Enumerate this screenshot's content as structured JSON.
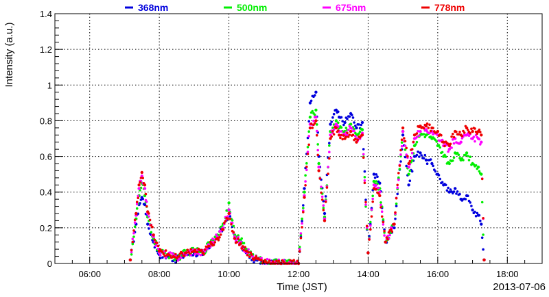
{
  "chart_data": {
    "type": "scatter",
    "title": "",
    "xlabel": "Time (JST)",
    "ylabel": "Intensity (a.u.)",
    "date_label": "2013-07-06",
    "xlim": [
      "05:00",
      "19:00"
    ],
    "ylim": [
      0,
      1.4
    ],
    "grid": true,
    "legend_position": "top",
    "x_tick_labels": [
      "06:00",
      "08:00",
      "10:00",
      "12:00",
      "14:00",
      "16:00",
      "18:00"
    ],
    "y_tick_labels": [
      "0",
      "0.2",
      "0.4",
      "0.6",
      "0.8",
      "1",
      "1.2",
      "1.4"
    ],
    "series": [
      {
        "name": "368nm",
        "color": "#0000dd",
        "x": [
          "07:10",
          "07:20",
          "07:25",
          "07:30",
          "07:35",
          "07:40",
          "07:50",
          "08:00",
          "08:15",
          "08:30",
          "08:45",
          "09:00",
          "09:15",
          "09:30",
          "09:40",
          "09:50",
          "10:00",
          "10:10",
          "10:20",
          "10:30",
          "10:45",
          "11:00",
          "11:30",
          "12:00",
          "12:10",
          "12:20",
          "12:30",
          "12:35",
          "12:45",
          "12:55",
          "13:05",
          "13:10",
          "13:20",
          "13:30",
          "13:40",
          "13:50",
          "14:00",
          "14:10",
          "14:20",
          "14:30",
          "14:45",
          "15:00",
          "15:10",
          "15:20",
          "15:30",
          "15:40",
          "15:50",
          "16:00",
          "16:10",
          "16:20",
          "16:30",
          "16:40",
          "16:50",
          "17:00",
          "17:10",
          "17:15",
          "17:20"
        ],
        "y": [
          0.02,
          0.22,
          0.33,
          0.37,
          0.33,
          0.22,
          0.12,
          0.05,
          0.04,
          0.02,
          0.05,
          0.06,
          0.05,
          0.11,
          0.14,
          0.2,
          0.3,
          0.14,
          0.11,
          0.06,
          0.02,
          0.01,
          0.0,
          0.0,
          0.42,
          0.9,
          0.96,
          0.6,
          0.28,
          0.78,
          0.86,
          0.82,
          0.79,
          0.84,
          0.76,
          0.79,
          0.06,
          0.5,
          0.45,
          0.12,
          0.2,
          0.72,
          0.44,
          0.6,
          0.62,
          0.58,
          0.56,
          0.5,
          0.44,
          0.4,
          0.42,
          0.36,
          0.38,
          0.3,
          0.27,
          0.22,
          0.02
        ]
      },
      {
        "name": "500nm",
        "color": "#00ee00",
        "x": [
          "07:10",
          "07:20",
          "07:25",
          "07:30",
          "07:35",
          "07:40",
          "07:50",
          "08:00",
          "08:15",
          "08:30",
          "08:45",
          "09:00",
          "09:15",
          "09:30",
          "09:40",
          "09:50",
          "10:00",
          "10:10",
          "10:20",
          "10:30",
          "10:45",
          "11:00",
          "11:30",
          "12:00",
          "12:10",
          "12:20",
          "12:30",
          "12:35",
          "12:45",
          "12:55",
          "13:05",
          "13:10",
          "13:20",
          "13:30",
          "13:40",
          "13:50",
          "14:00",
          "14:10",
          "14:20",
          "14:30",
          "14:45",
          "15:00",
          "15:10",
          "15:20",
          "15:30",
          "15:40",
          "15:50",
          "16:00",
          "16:10",
          "16:20",
          "16:30",
          "16:40",
          "16:50",
          "17:00",
          "17:10",
          "17:15",
          "17:20"
        ],
        "y": [
          0.02,
          0.25,
          0.38,
          0.45,
          0.38,
          0.26,
          0.14,
          0.06,
          0.05,
          0.03,
          0.06,
          0.07,
          0.06,
          0.13,
          0.16,
          0.22,
          0.34,
          0.16,
          0.13,
          0.08,
          0.03,
          0.01,
          0.0,
          0.0,
          0.4,
          0.82,
          0.86,
          0.56,
          0.26,
          0.74,
          0.8,
          0.76,
          0.74,
          0.78,
          0.72,
          0.75,
          0.06,
          0.46,
          0.42,
          0.12,
          0.22,
          0.74,
          0.5,
          0.66,
          0.72,
          0.72,
          0.7,
          0.66,
          0.6,
          0.56,
          0.62,
          0.58,
          0.62,
          0.56,
          0.54,
          0.5,
          0.02
        ]
      },
      {
        "name": "675nm",
        "color": "#ff00ff",
        "x": [
          "07:10",
          "07:20",
          "07:25",
          "07:30",
          "07:35",
          "07:40",
          "07:50",
          "08:00",
          "08:15",
          "08:30",
          "08:45",
          "09:00",
          "09:15",
          "09:30",
          "09:40",
          "09:50",
          "10:00",
          "10:10",
          "10:20",
          "10:30",
          "10:45",
          "11:00",
          "11:30",
          "12:00",
          "12:10",
          "12:20",
          "12:30",
          "12:35",
          "12:45",
          "12:55",
          "13:05",
          "13:10",
          "13:20",
          "13:30",
          "13:40",
          "13:50",
          "14:00",
          "14:10",
          "14:20",
          "14:30",
          "14:45",
          "15:00",
          "15:10",
          "15:20",
          "15:30",
          "15:40",
          "15:50",
          "16:00",
          "16:10",
          "16:20",
          "16:30",
          "16:40",
          "16:50",
          "17:00",
          "17:10",
          "17:15",
          "17:20"
        ],
        "y": [
          0.02,
          0.27,
          0.42,
          0.49,
          0.42,
          0.28,
          0.15,
          0.06,
          0.05,
          0.03,
          0.06,
          0.07,
          0.06,
          0.12,
          0.15,
          0.2,
          0.3,
          0.15,
          0.12,
          0.07,
          0.03,
          0.01,
          0.0,
          0.0,
          0.38,
          0.78,
          0.82,
          0.54,
          0.25,
          0.72,
          0.78,
          0.74,
          0.72,
          0.76,
          0.7,
          0.73,
          0.06,
          0.44,
          0.4,
          0.12,
          0.22,
          0.74,
          0.54,
          0.7,
          0.74,
          0.75,
          0.74,
          0.72,
          0.66,
          0.64,
          0.7,
          0.68,
          0.72,
          0.7,
          0.7,
          0.68,
          0.02
        ]
      },
      {
        "name": "778nm",
        "color": "#ee0000",
        "x": [
          "07:10",
          "07:20",
          "07:25",
          "07:30",
          "07:35",
          "07:40",
          "07:50",
          "08:00",
          "08:15",
          "08:30",
          "08:45",
          "09:00",
          "09:15",
          "09:30",
          "09:40",
          "09:50",
          "10:00",
          "10:10",
          "10:20",
          "10:30",
          "10:45",
          "11:00",
          "11:30",
          "12:00",
          "12:10",
          "12:20",
          "12:30",
          "12:35",
          "12:45",
          "12:55",
          "13:05",
          "13:10",
          "13:20",
          "13:30",
          "13:40",
          "13:50",
          "14:00",
          "14:10",
          "14:20",
          "14:30",
          "14:45",
          "15:00",
          "15:10",
          "15:20",
          "15:30",
          "15:40",
          "15:50",
          "16:00",
          "16:10",
          "16:20",
          "16:30",
          "16:40",
          "16:50",
          "17:00",
          "17:10",
          "17:15",
          "17:20"
        ],
        "y": [
          0.02,
          0.28,
          0.44,
          0.51,
          0.44,
          0.29,
          0.16,
          0.07,
          0.05,
          0.03,
          0.06,
          0.07,
          0.06,
          0.11,
          0.14,
          0.19,
          0.28,
          0.14,
          0.11,
          0.07,
          0.03,
          0.01,
          0.0,
          0.0,
          0.37,
          0.76,
          0.8,
          0.52,
          0.24,
          0.7,
          0.76,
          0.72,
          0.7,
          0.74,
          0.68,
          0.72,
          0.06,
          0.42,
          0.38,
          0.12,
          0.22,
          0.76,
          0.56,
          0.72,
          0.77,
          0.77,
          0.76,
          0.74,
          0.68,
          0.66,
          0.74,
          0.72,
          0.76,
          0.74,
          0.74,
          0.72,
          0.02
        ]
      }
    ]
  }
}
